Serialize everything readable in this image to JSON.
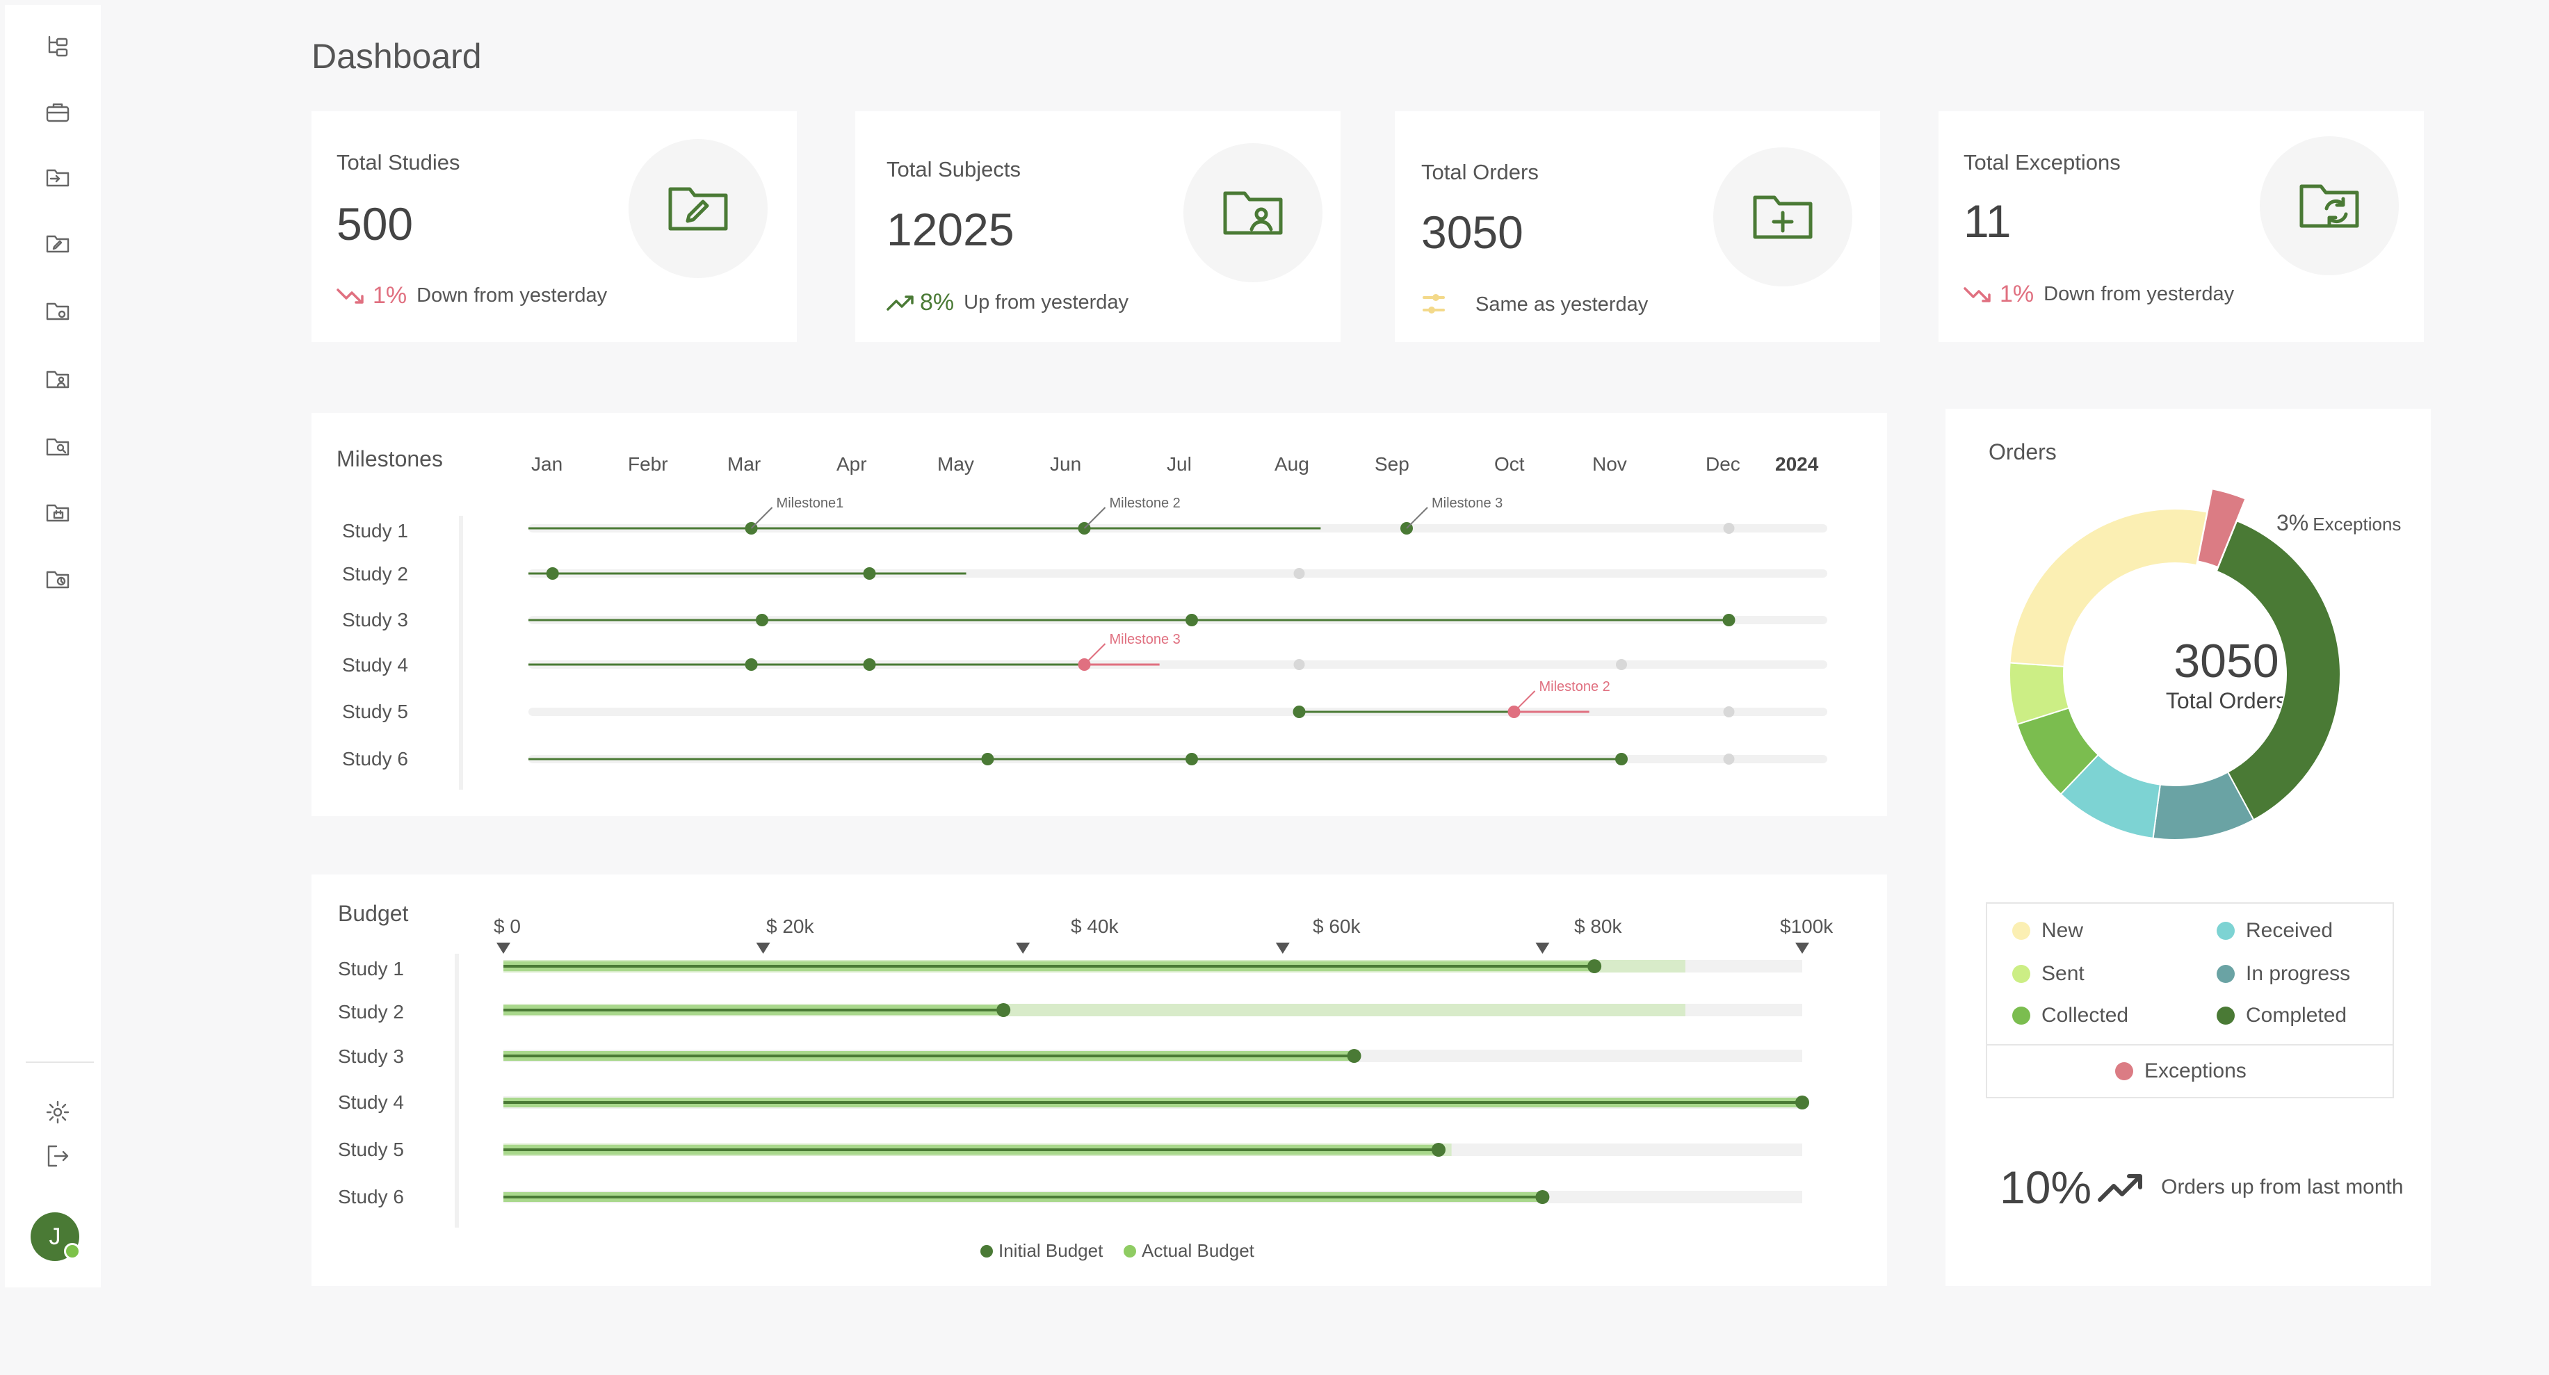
{
  "page": {
    "title": "Dashboard"
  },
  "sidebar": {
    "items": [
      {
        "icon": "hierarchy-icon"
      },
      {
        "icon": "briefcase-icon"
      },
      {
        "icon": "folder-import-icon"
      },
      {
        "icon": "folder-edit-icon"
      },
      {
        "icon": "folder-settings-icon"
      },
      {
        "icon": "folder-user-icon"
      },
      {
        "icon": "folder-search-icon"
      },
      {
        "icon": "folder-calendar-icon"
      },
      {
        "icon": "folder-clock-icon"
      }
    ],
    "settings_icon": "gear-icon",
    "logout_icon": "logout-icon",
    "avatar_initial": "J"
  },
  "kpis": [
    {
      "label": "Total Studies",
      "value": "500",
      "trend_value": "1%",
      "trend_text": "Down from yesterday",
      "trend": "down",
      "icon": "folder-edit-icon"
    },
    {
      "label": "Total Subjects",
      "value": "12025",
      "trend_value": "8%",
      "trend_text": "Up from yesterday",
      "trend": "up",
      "icon": "folder-user-icon"
    },
    {
      "label": "Total Orders",
      "value": "3050",
      "trend_value": "",
      "trend_text": "Same as yesterday",
      "trend": "same",
      "icon": "folder-add-icon"
    },
    {
      "label": "Total Exceptions",
      "value": "11",
      "trend_value": "1%",
      "trend_text": "Down from yesterday",
      "trend": "down",
      "icon": "folder-sync-icon"
    }
  ],
  "milestones": {
    "title": "Milestones",
    "year": "2024",
    "months": [
      "Jan",
      "Febr",
      "Mar",
      "Apr",
      "May",
      "Jun",
      "Jul",
      "Aug",
      "Sep",
      "Oct",
      "Nov",
      "Dec"
    ],
    "rows": [
      {
        "label": "Study 1",
        "progress_end": 7.2,
        "points": [
          1.9,
          5.0,
          8.0
        ],
        "future": [
          11.0
        ],
        "annotations": [
          {
            "at": 1.9,
            "text": "Milestone1",
            "alert": false
          },
          {
            "at": 5.0,
            "text": "Milestone 2",
            "alert": false
          },
          {
            "at": 8.0,
            "text": "Milestone 3",
            "alert": false
          }
        ]
      },
      {
        "label": "Study 2",
        "progress_end": 3.9,
        "points": [
          0.05,
          3.0
        ],
        "future": [
          7.0
        ],
        "annotations": []
      },
      {
        "label": "Study 3",
        "progress_end": 11.0,
        "points": [
          2.0,
          6.0,
          11.0
        ],
        "future": [],
        "annotations": []
      },
      {
        "label": "Study 4",
        "progress_end": 5.7,
        "alert_from": 5.0,
        "points": [
          1.9,
          3.0
        ],
        "alert_points": [
          5.0
        ],
        "future": [
          7.0,
          10.0
        ],
        "annotations": [
          {
            "at": 5.0,
            "text": "Milestone 3",
            "alert": true
          }
        ]
      },
      {
        "label": "Study 5",
        "progress_start": 7.0,
        "progress_end": 9.7,
        "alert_from": 9.0,
        "points": [
          7.0
        ],
        "alert_points": [
          9.0
        ],
        "future": [
          11.0
        ],
        "annotations": [
          {
            "at": 9.0,
            "text": "Milestone 2",
            "alert": true
          }
        ]
      },
      {
        "label": "Study 6",
        "progress_end": 10.0,
        "points": [
          4.1,
          6.0,
          10.0
        ],
        "future": [
          11.0
        ],
        "annotations": []
      }
    ]
  },
  "budget": {
    "title": "Budget",
    "ticks": [
      "$ 0",
      "$ 20k",
      "$ 40k",
      "$ 60k",
      "$ 80k",
      "$100k"
    ],
    "tick_values": [
      0,
      20000,
      40000,
      60000,
      80000,
      100000
    ],
    "rows": [
      {
        "label": "Study 1",
        "initial": 84000,
        "actual": 91000
      },
      {
        "label": "Study 2",
        "initial": 38500,
        "actual": 91000
      },
      {
        "label": "Study 3",
        "initial": 65500,
        "actual": 0
      },
      {
        "label": "Study 4",
        "initial": 100000,
        "actual": 0
      },
      {
        "label": "Study 5",
        "initial": 72000,
        "actual": 73000
      },
      {
        "label": "Study 6",
        "initial": 80000,
        "actual": 0
      }
    ],
    "legend": {
      "initial": "Initial Budget",
      "actual": "Actual Budget"
    }
  },
  "orders": {
    "title": "Orders",
    "center_value": "3050",
    "center_label": "Total Orders",
    "exceptions_percent": "3%",
    "exceptions_label": "Exceptions",
    "legend": {
      "new": "New",
      "received": "Received",
      "sent": "Sent",
      "in_progress": "In progress",
      "collected": "Collected",
      "completed": "Completed",
      "exceptions": "Exceptions"
    },
    "trend_value": "10%",
    "trend_text": "Orders up from last month"
  },
  "colors": {
    "green": "#4a7a35",
    "light_green": "#d8ebc9",
    "track": "#f1f1f1",
    "alert": "#e07080",
    "future": "#d8d8d8",
    "new": "#fbefb3",
    "sent": "#ccee85",
    "collected": "#7bbd4f",
    "received": "#7dd3d3",
    "in_progress": "#6aa3a4",
    "completed": "#4a7a35",
    "exceptions": "#db7c84"
  },
  "chart_data": {
    "type": "pie",
    "categories": [
      "Completed",
      "In progress",
      "Received",
      "Collected",
      "Sent",
      "New",
      "Exceptions"
    ],
    "values": [
      36,
      10,
      10,
      8,
      6,
      27,
      3
    ],
    "title": "Orders"
  }
}
